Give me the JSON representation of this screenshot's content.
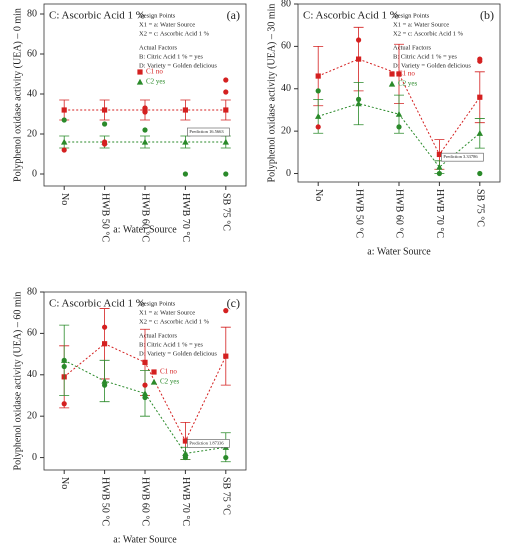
{
  "chart_data": [
    {
      "type": "line",
      "title": "C: Ascorbic Acid 1 %",
      "panel_label": "(a)",
      "y_label": "Polyphenol oxidase activity (UEA) – 0 min",
      "x_label": "a: Water Source",
      "notes": [
        "Design Points",
        "X1 = a: Water Source",
        "X2 = c: Ascorbic Acid 1 %",
        "Actual Factors",
        "B: Citric Acid 1 % = yes",
        "D: Variety = Golden delicious"
      ],
      "annotation": "Prediction 16.5663",
      "categories": [
        "No",
        "HWB 50 °C",
        "HWB 60 °C",
        "HWB 70 °C",
        "SB 75 °C"
      ],
      "ylim": [
        -6,
        85
      ],
      "yticks": [
        0,
        20,
        40,
        60,
        80
      ],
      "series": [
        {
          "name": "C1 no",
          "color": "#d42020",
          "marker": "square",
          "values": [
            32,
            32,
            32,
            32,
            32
          ],
          "errors": [
            5,
            5,
            5,
            5,
            5
          ]
        },
        {
          "name": "C2 yes",
          "color": "#2a8a2a",
          "marker": "triangle",
          "values": [
            16,
            16,
            16,
            16,
            16
          ],
          "errors": [
            3,
            3,
            3,
            3,
            3
          ]
        }
      ],
      "design_points": [
        {
          "color": "#d42020",
          "values": [
            12,
            16,
            31,
            null,
            47
          ]
        },
        {
          "color": "#d42020",
          "values": [
            null,
            15,
            33,
            null,
            41
          ]
        },
        {
          "color": "#2a8a2a",
          "values": [
            27,
            25,
            22,
            0,
            0
          ]
        }
      ]
    },
    {
      "type": "line",
      "title": "C: Ascorbic Acid 1 %",
      "panel_label": "(b)",
      "y_label": "Polyphenol oxidase activity (UEA) – 30 min",
      "x_label": "a: Water Source",
      "notes": [
        "Design Points",
        "X1 = a: Water Source",
        "X2 = c: Ascorbic Acid 1 %",
        "Actual Factors",
        "B: Citric Acid 1 % = yes",
        "D: Variety = Golden delicious"
      ],
      "annotation": "Prediction 3.33786",
      "categories": [
        "No",
        "HWB 50 °C",
        "HWB 60 °C",
        "HWB 70 °C",
        "SB 75 °C"
      ],
      "ylim": [
        -4,
        80
      ],
      "yticks": [
        0,
        20,
        40,
        60,
        80
      ],
      "series": [
        {
          "name": "C1 no",
          "color": "#d42020",
          "marker": "square",
          "values": [
            46,
            54,
            47,
            9,
            36
          ],
          "errors": [
            14,
            15,
            14,
            7,
            12
          ]
        },
        {
          "name": "C2 yes",
          "color": "#2a8a2a",
          "marker": "triangle",
          "values": [
            27,
            33,
            28,
            3,
            19
          ],
          "errors": [
            8,
            10,
            9,
            3,
            7
          ]
        }
      ],
      "design_points": [
        {
          "color": "#d42020",
          "values": [
            22,
            63,
            47,
            null,
            54
          ]
        },
        {
          "color": "#d42020",
          "values": [
            null,
            null,
            null,
            null,
            53
          ]
        },
        {
          "color": "#2a8a2a",
          "values": [
            39,
            35,
            22,
            0,
            0
          ]
        }
      ]
    },
    {
      "type": "line",
      "title": "C: Ascorbic Acid 1 %",
      "panel_label": "(c)",
      "y_label": "Polyphenol oxidase activity (UEA) – 60 min",
      "x_label": "a: Water Source",
      "notes": [
        "Design Points",
        "X1 = a: Water Source",
        "X2 = c: Ascorbic Acid 1 %",
        "Actual Factors",
        "B: Citric Acid 1 % = yes",
        "D: Variety = Golden delicious"
      ],
      "annotation": "Prediction 1.87336",
      "categories": [
        "No",
        "HWB 50 °C",
        "HWB 60 °C",
        "HWB 70 °C",
        "SB 75 °C"
      ],
      "ylim": [
        -6,
        80
      ],
      "yticks": [
        0,
        20,
        40,
        60,
        80
      ],
      "series": [
        {
          "name": "C1 no",
          "color": "#d42020",
          "marker": "square",
          "values": [
            39,
            55,
            46,
            8,
            49
          ],
          "errors": [
            15,
            17,
            16,
            9,
            14
          ]
        },
        {
          "name": "C2 yes",
          "color": "#2a8a2a",
          "marker": "triangle",
          "values": [
            47,
            37,
            31,
            2,
            5
          ],
          "errors": [
            17,
            10,
            11,
            3,
            7
          ]
        }
      ],
      "design_points": [
        {
          "color": "#d42020",
          "values": [
            26,
            63,
            35,
            null,
            71
          ]
        },
        {
          "color": "#2a8a2a",
          "values": [
            44,
            35,
            29,
            0,
            0
          ]
        },
        {
          "color": "#2a8a2a",
          "values": [
            47,
            null,
            null,
            1,
            null
          ]
        }
      ]
    }
  ]
}
